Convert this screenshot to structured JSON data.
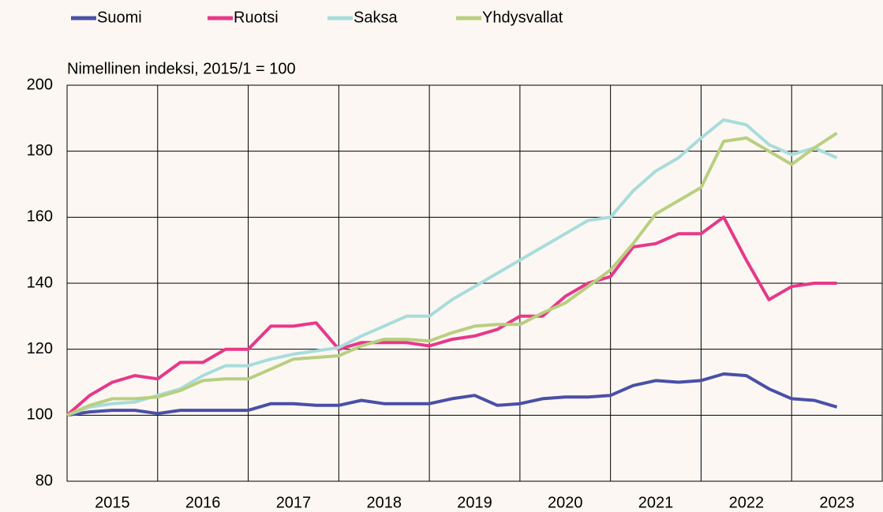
{
  "chart_data": {
    "type": "line",
    "ylabel": "Nimellinen  indeksi, 2015/1 = 100",
    "x": [
      2015,
      2015.25,
      2015.5,
      2015.75,
      2016,
      2016.25,
      2016.5,
      2016.75,
      2017,
      2017.25,
      2017.5,
      2017.75,
      2018,
      2018.25,
      2018.5,
      2018.75,
      2019,
      2019.25,
      2019.5,
      2019.75,
      2020,
      2020.25,
      2020.5,
      2020.75,
      2021,
      2021.25,
      2021.5,
      2021.75,
      2022,
      2022.25,
      2022.5,
      2022.75,
      2023,
      2023.25,
      2023.5
    ],
    "series": [
      {
        "name": "Suomi",
        "color": "#4a4fa8",
        "values": [
          100,
          101,
          101.5,
          101.5,
          100.5,
          101.5,
          101.5,
          101.5,
          101.5,
          103.5,
          103.5,
          103,
          103,
          104.5,
          103.5,
          103.5,
          103.5,
          105,
          106,
          103,
          103.5,
          105,
          105.5,
          105.5,
          106,
          109,
          110.5,
          110,
          110.5,
          112.5,
          112,
          108,
          105,
          104.5,
          102.5
        ]
      },
      {
        "name": "Ruotsi",
        "color": "#e8388a",
        "values": [
          100,
          106,
          110,
          112,
          111,
          116,
          116,
          120,
          120,
          127,
          127,
          128,
          120,
          122,
          122,
          122,
          121,
          123,
          124,
          126,
          130,
          130,
          136,
          140,
          142,
          151,
          152,
          155,
          155,
          160,
          147,
          135,
          139,
          140,
          140
        ]
      },
      {
        "name": "Saksa",
        "color": "#a8dcdc",
        "values": [
          100,
          102.5,
          103.5,
          104,
          106,
          108,
          112,
          115,
          115,
          117,
          118.5,
          119.5,
          120.5,
          124,
          127,
          130,
          130,
          135,
          139,
          143,
          147,
          151,
          155,
          159,
          160,
          168,
          174,
          178,
          184,
          189.5,
          188,
          182,
          179,
          181,
          178
        ]
      },
      {
        "name": "Yhdysvallat",
        "color": "#b8cf80",
        "values": [
          100,
          103,
          105,
          105,
          105.5,
          107.5,
          110.5,
          111,
          111,
          114,
          117,
          117.5,
          118,
          121,
          123,
          123,
          122.5,
          125,
          127,
          127.5,
          127.5,
          131,
          134,
          139,
          144,
          152,
          161,
          165,
          169,
          183,
          184,
          180,
          176,
          181,
          185.5
        ]
      }
    ],
    "xlim": [
      2015,
      2024
    ],
    "xticks": [
      2015,
      2016,
      2017,
      2018,
      2019,
      2020,
      2021,
      2022,
      2023,
      2024
    ],
    "ylim": [
      80,
      200
    ],
    "yticks": [
      80,
      100,
      120,
      140,
      160,
      180,
      200
    ],
    "grid": true,
    "legend": "top"
  }
}
